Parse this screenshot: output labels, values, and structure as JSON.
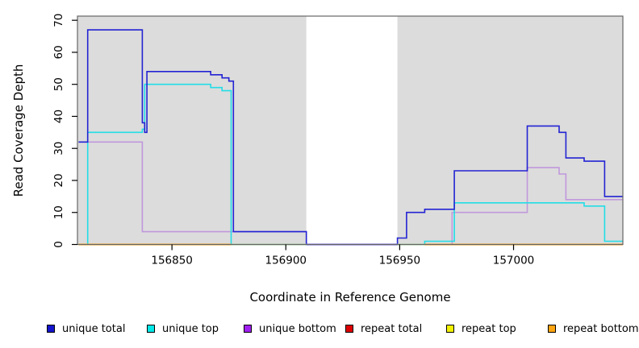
{
  "axes": {
    "x_label": "Coordinate in Reference Genome",
    "y_label": "Read Coverage Depth"
  },
  "legend": {
    "items": [
      {
        "label": "unique total",
        "color": "#1414CC"
      },
      {
        "label": "unique top",
        "color": "#00E8E8"
      },
      {
        "label": "unique bottom",
        "color": "#A020F0"
      },
      {
        "label": "repeat total",
        "color": "#DD0000"
      },
      {
        "label": "repeat top",
        "color": "#F2F200"
      },
      {
        "label": "repeat bottom",
        "color": "#FFA510"
      }
    ]
  },
  "chart_data": {
    "type": "line",
    "subtype": "step-coverage",
    "xlabel": "Coordinate in Reference Genome",
    "ylabel": "Read Coverage Depth",
    "xlim": [
      156808.5,
      157048
    ],
    "ylim": [
      0,
      71.3
    ],
    "x_ticks": [
      156850,
      156900,
      156950,
      157000
    ],
    "y_ticks": [
      0,
      10,
      20,
      30,
      40,
      50,
      60,
      70
    ],
    "plot_bg": "#DCDCDC",
    "gap_region": [
      156909,
      156949
    ],
    "grid": false,
    "legend_position": "bottom",
    "series": [
      {
        "name": "repeat total",
        "color": "#CC0000",
        "points": [
          [
            156809,
            0
          ]
        ]
      },
      {
        "name": "repeat top",
        "color": "#F0F000",
        "points": [
          [
            156809,
            0
          ]
        ]
      },
      {
        "name": "repeat bottom",
        "color": "#FFA510",
        "points": [
          [
            156809,
            0
          ]
        ]
      },
      {
        "name": "unique bottom",
        "color": "#C098DC",
        "points": [
          [
            156809,
            32
          ],
          [
            156837,
            4
          ],
          [
            156909,
            0
          ],
          [
            156973,
            10
          ],
          [
            157006,
            24
          ],
          [
            157020,
            22
          ],
          [
            157023,
            14
          ]
        ]
      },
      {
        "name": "unique top",
        "color": "#22DDE6",
        "points": [
          [
            156809,
            0
          ],
          [
            156813,
            35
          ],
          [
            156837,
            36
          ],
          [
            156838,
            50
          ],
          [
            156867,
            49
          ],
          [
            156872,
            48
          ],
          [
            156876,
            0
          ],
          [
            156961,
            1
          ],
          [
            156974,
            13
          ],
          [
            157031,
            12
          ],
          [
            157040,
            1
          ]
        ]
      },
      {
        "name": "unique total",
        "color": "#2323D3",
        "points": [
          [
            156809,
            32
          ],
          [
            156813,
            67
          ],
          [
            156837,
            38
          ],
          [
            156838,
            35
          ],
          [
            156839,
            54
          ],
          [
            156867,
            53
          ],
          [
            156872,
            52
          ],
          [
            156875,
            51
          ],
          [
            156877,
            4
          ],
          [
            156909,
            0
          ],
          [
            156949,
            2
          ],
          [
            156953,
            10
          ],
          [
            156961,
            11
          ],
          [
            156974,
            23
          ],
          [
            157006,
            37
          ],
          [
            157020,
            35
          ],
          [
            157023,
            27
          ],
          [
            157031,
            26
          ],
          [
            157040,
            15
          ]
        ]
      }
    ],
    "baseline_overlays": [
      {
        "from": 156809,
        "to": 156876,
        "color": "#FFA510"
      },
      {
        "from": 156876,
        "to": 156909,
        "color": "#A8D8A0"
      },
      {
        "from": 156909,
        "to": 156949,
        "color": "#6455D8"
      },
      {
        "from": 156949,
        "to": 156961,
        "color": "#A8D8A0"
      },
      {
        "from": 156961,
        "to": 157048,
        "color": "#FFA510"
      }
    ],
    "legend_x_positions": [
      58,
      182,
      302,
      428,
      553,
      679
    ]
  }
}
